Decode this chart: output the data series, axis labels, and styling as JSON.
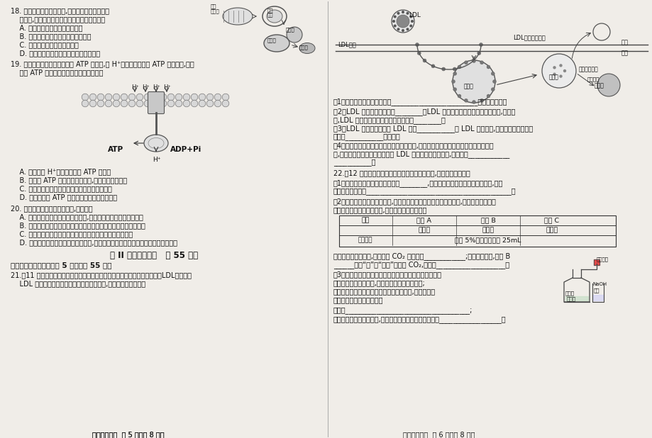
{
  "background_color": "#f0ede8",
  "footer_left": "高一生物试题  第 5 页（共 8 页）",
  "footer_right": "高一生物试题  第 6 页（共 8 页）",
  "section2_title": "第 II 卷（非选择题   共 55 分）",
  "section3_title": "三、非选择题：本题包括 5 小题，共 55 分。"
}
